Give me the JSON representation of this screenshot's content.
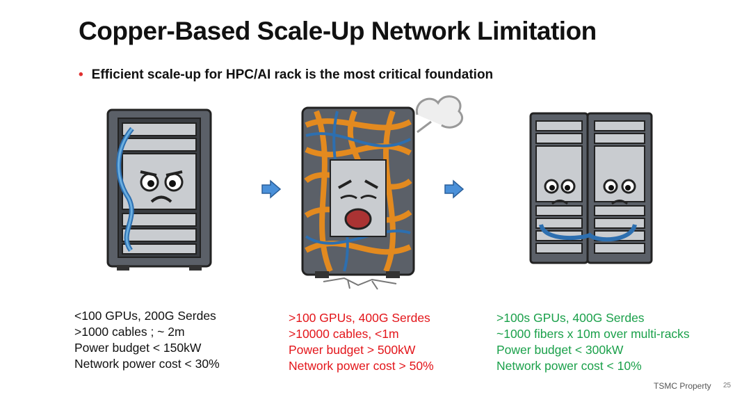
{
  "slide": {
    "title": "Copper-Based Scale-Up Network Limitation",
    "bullet": "Efficient scale-up for HPC/AI rack is the most critical foundation",
    "bullet_color": "#e03030"
  },
  "columns": [
    {
      "illustration": "sad-single-rack-icon",
      "color": "#111111",
      "lines": [
        "<100 GPUs, 200G Serdes",
        ">1000 cables ; ~ 2m",
        "Power budget < 150kW",
        "Network power cost < 30%"
      ]
    },
    {
      "illustration": "overloaded-tangled-rack-icon",
      "color": "#e3151a",
      "lines": [
        ">100 GPUs, 400G Serdes",
        ">10000 cables,  <1m",
        "Power budget > 500kW",
        "Network power cost > 50%"
      ]
    },
    {
      "illustration": "multi-rack-fiber-icon",
      "color": "#1aa04a",
      "lines": [
        ">100s GPUs, 400G Serdes",
        "~1000 fibers x 10m over multi-racks",
        "Power budget < 300kW",
        "Network power cost < 10%"
      ]
    }
  ],
  "arrows": [
    "arrow-right-icon",
    "arrow-right-icon"
  ],
  "footer": {
    "label": "TSMC Property",
    "page_number": "25"
  }
}
